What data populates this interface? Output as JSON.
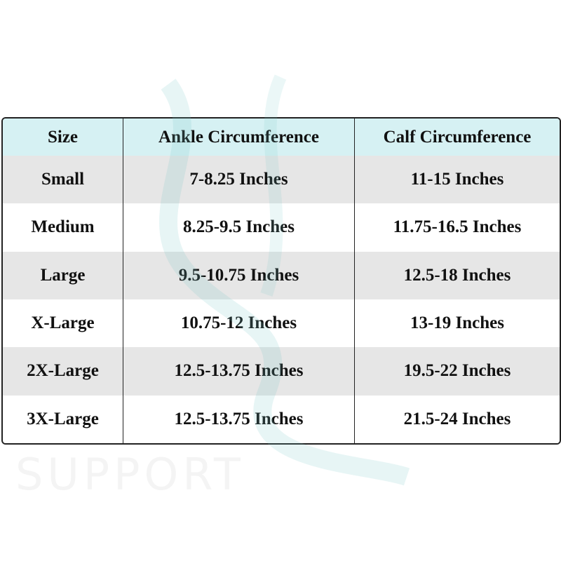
{
  "watermark": {
    "tagline": "SUPPORT"
  },
  "table": {
    "header": [
      "Size",
      "Ankle Circumference",
      "Calf Circumference"
    ],
    "rows": [
      [
        "Small",
        "7-8.25 Inches",
        "11-15 Inches"
      ],
      [
        "Medium",
        "8.25-9.5 Inches",
        "11.75-16.5 Inches"
      ],
      [
        "Large",
        "9.5-10.75 Inches",
        "12.5-18 Inches"
      ],
      [
        "X-Large",
        "10.75-12 Inches",
        "13-19 Inches"
      ],
      [
        "2X-Large",
        "12.5-13.75 Inches",
        "19.5-22 Inches"
      ],
      [
        "3X-Large",
        "12.5-13.75 Inches",
        "21.5-24 Inches"
      ]
    ]
  }
}
